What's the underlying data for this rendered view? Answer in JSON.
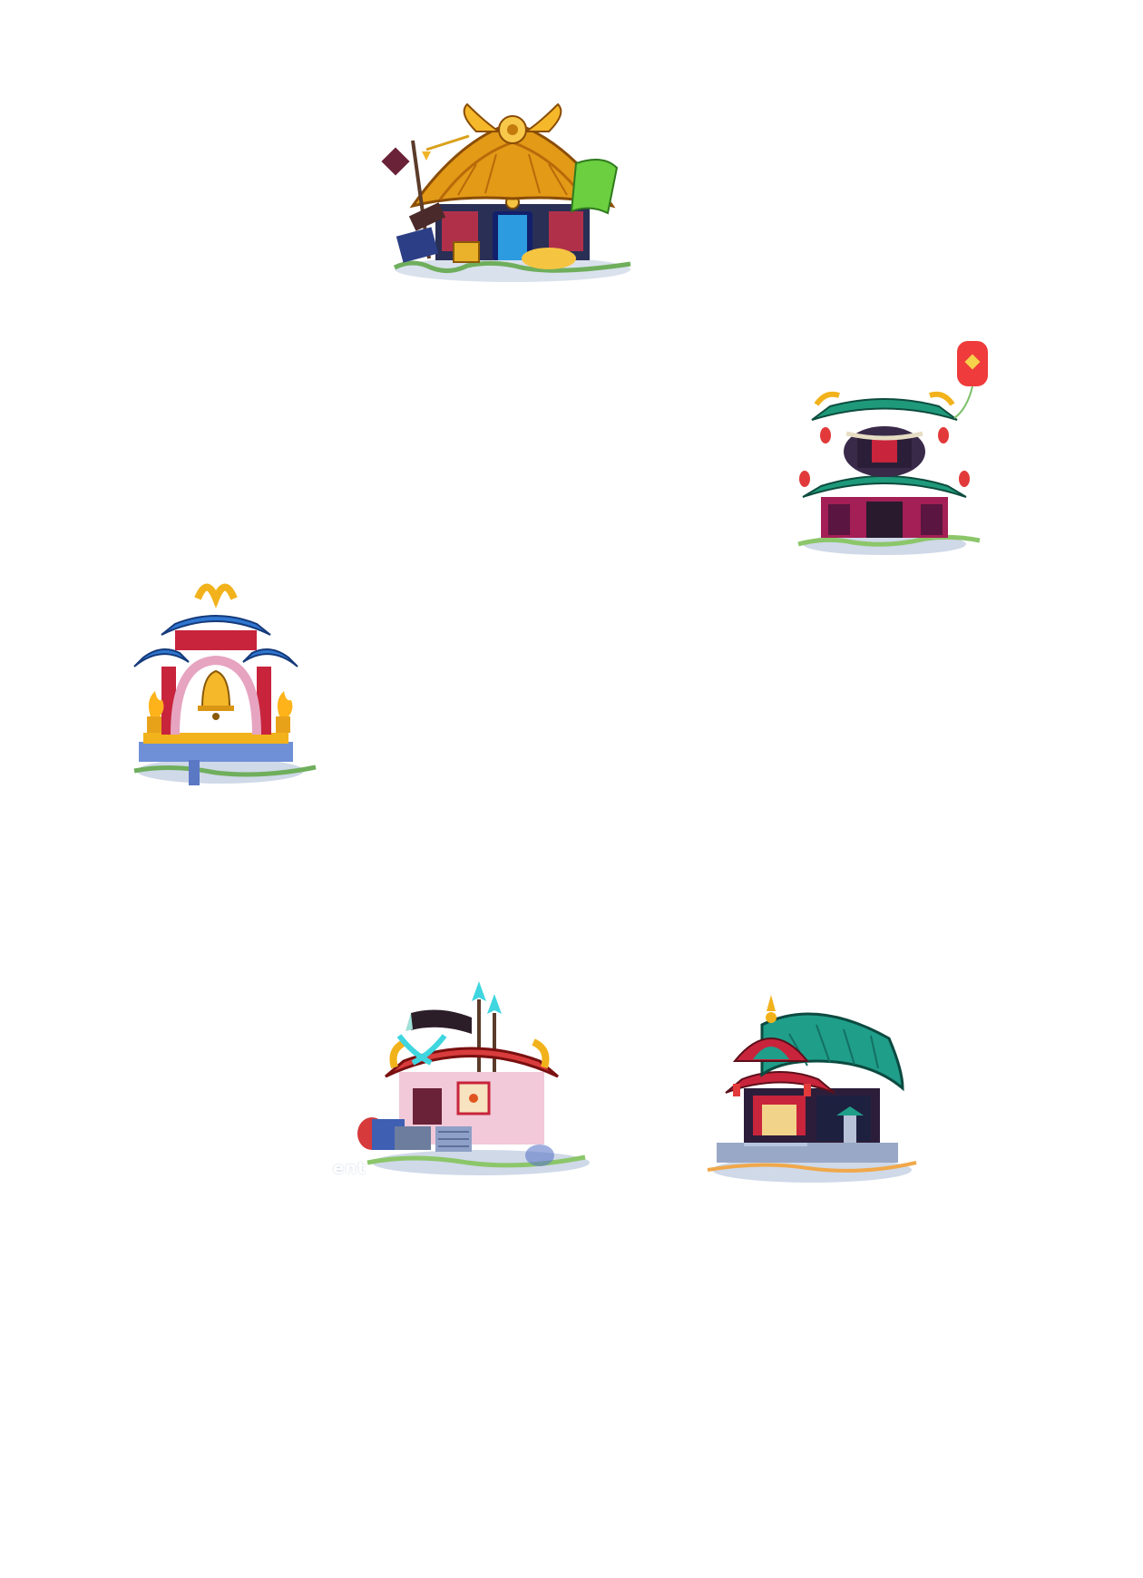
{
  "scene": {
    "background": "#ffffff",
    "buildings": [
      {
        "id": "treasury",
        "icon": "golden-horned-treasury-icon"
      },
      {
        "id": "lantern-pavilion",
        "icon": "lantern-pagoda-icon"
      },
      {
        "id": "bell-shrine",
        "icon": "golden-bell-shrine-icon"
      },
      {
        "id": "weapons-barracks",
        "icon": "spear-barracks-icon"
      },
      {
        "id": "grand-temple",
        "icon": "jade-roof-temple-icon"
      }
    ],
    "fragment_text": "ent"
  },
  "colors": {
    "gold": "#f2b21b",
    "jade": "#1f9e8a",
    "crimson": "#c8243c",
    "royal_blue": "#2f6fd1",
    "stone": "#9aa8c7",
    "grass": "#7fbf6a"
  }
}
